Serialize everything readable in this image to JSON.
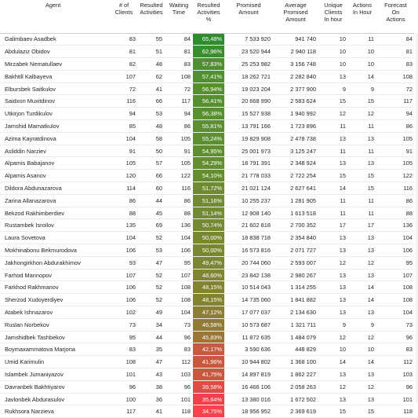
{
  "table": {
    "headers": {
      "agent": "Agent",
      "clients": [
        "# of",
        "Clients"
      ],
      "resulted_activities": [
        "Resulted",
        "Activities"
      ],
      "waiting_time": [
        "Waiting",
        "Time"
      ],
      "resulted_activities_pct": [
        "Resulted",
        "Activities",
        "%"
      ],
      "promised_amount": [
        "Promised",
        "Amount"
      ],
      "avg_promised_amount": [
        "Average",
        "Promised",
        "Amount"
      ],
      "unique_clients_in_hour": [
        "Unique",
        "Clients",
        "In hour"
      ],
      "actions_in_hour": [
        "Actions",
        "In Hour"
      ],
      "forecast_on_actions": [
        "Forecast",
        "On",
        "Actions"
      ]
    },
    "rows": [
      {
        "agent": "Galimbaev Asadbek",
        "clients": "83",
        "resulted": "55",
        "waiting": "84",
        "pct": "65,48%",
        "pct_color": "#2e8b2e",
        "promised": "7 533 920",
        "avg": "941 740",
        "unique": "10",
        "actions": "11",
        "forecast": "84"
      },
      {
        "agent": "Abdulaziz Obidov",
        "clients": "81",
        "resulted": "51",
        "waiting": "81",
        "pct": "62,96%",
        "pct_color": "#3b8e2f",
        "promised": "23 520 944",
        "avg": "2 940 118",
        "unique": "10",
        "actions": "10",
        "forecast": "81"
      },
      {
        "agent": "Mirzabek Nematullaev",
        "clients": "82",
        "resulted": "48",
        "waiting": "83",
        "pct": "57,83%",
        "pct_color": "#4f8f31",
        "promised": "25 253 982",
        "avg": "3 156 748",
        "unique": "10",
        "actions": "10",
        "forecast": "83"
      },
      {
        "agent": "Bakhtill Kalbayeva",
        "clients": "107",
        "resulted": "62",
        "waiting": "108",
        "pct": "57,41%",
        "pct_color": "#518f31",
        "promised": "18 262 721",
        "avg": "2 282 840",
        "unique": "13",
        "actions": "14",
        "forecast": "108"
      },
      {
        "agent": "Elbursbek Saitkulov",
        "clients": "72",
        "resulted": "41",
        "waiting": "72",
        "pct": "56,94%",
        "pct_color": "#548f31",
        "promised": "19 023 204",
        "avg": "2 377 900",
        "unique": "9",
        "actions": "9",
        "forecast": "72"
      },
      {
        "agent": "Saidxon Muxitdinov",
        "clients": "116",
        "resulted": "66",
        "waiting": "117",
        "pct": "56,41%",
        "pct_color": "#568f31",
        "promised": "20 668 990",
        "avg": "2 583 624",
        "unique": "15",
        "actions": "15",
        "forecast": "117"
      },
      {
        "agent": "Utkirjon Turdikulov",
        "clients": "94",
        "resulted": "53",
        "waiting": "94",
        "pct": "56,38%",
        "pct_color": "#578f31",
        "promised": "15 527 938",
        "avg": "1 940 992",
        "unique": "12",
        "actions": "12",
        "forecast": "94"
      },
      {
        "agent": "Jamshid Mamatkulov",
        "clients": "85",
        "resulted": "48",
        "waiting": "86",
        "pct": "55,81%",
        "pct_color": "#5a8e31",
        "promised": "13 791 166",
        "avg": "1 723 896",
        "unique": "11",
        "actions": "11",
        "forecast": "86"
      },
      {
        "agent": "Azima Kayratdinova",
        "clients": "104",
        "resulted": "58",
        "waiting": "105",
        "pct": "55,24%",
        "pct_color": "#5d8e31",
        "promised": "19 829 908",
        "avg": "2 478 738",
        "unique": "13",
        "actions": "13",
        "forecast": "105"
      },
      {
        "agent": "Asliddin Narziev",
        "clients": "91",
        "resulted": "50",
        "waiting": "91",
        "pct": "54,95%",
        "pct_color": "#5f8e31",
        "promised": "25 001 973",
        "avg": "3 125 247",
        "unique": "11",
        "actions": "11",
        "forecast": "91"
      },
      {
        "agent": "Alpamis Babajanov",
        "clients": "105",
        "resulted": "57",
        "waiting": "105",
        "pct": "54,29%",
        "pct_color": "#638d31",
        "promised": "18 791 391",
        "avg": "2 348 924",
        "unique": "13",
        "actions": "13",
        "forecast": "105"
      },
      {
        "agent": "Alpamis Asanov",
        "clients": "120",
        "resulted": "66",
        "waiting": "122",
        "pct": "54,10%",
        "pct_color": "#648d31",
        "promised": "21 778 033",
        "avg": "2 722 254",
        "unique": "15",
        "actions": "15",
        "forecast": "122"
      },
      {
        "agent": "Dildora Abdunazarova",
        "clients": "114",
        "resulted": "60",
        "waiting": "116",
        "pct": "51,72%",
        "pct_color": "#6f8a32",
        "promised": "21 021 124",
        "avg": "2 627 641",
        "unique": "14",
        "actions": "15",
        "forecast": "116"
      },
      {
        "agent": "Zarina Allanazarova",
        "clients": "86",
        "resulted": "44",
        "waiting": "86",
        "pct": "51,16%",
        "pct_color": "#728a32",
        "promised": "10 255 237",
        "avg": "1 281 905",
        "unique": "11",
        "actions": "11",
        "forecast": "86"
      },
      {
        "agent": "Bekzod Rakhimberdiev",
        "clients": "88",
        "resulted": "45",
        "waiting": "88",
        "pct": "51,14%",
        "pct_color": "#728a32",
        "promised": "12 908 140",
        "avg": "1 613 518",
        "unique": "11",
        "actions": "11",
        "forecast": "88"
      },
      {
        "agent": "Rustambek Isroilov",
        "clients": "135",
        "resulted": "69",
        "waiting": "136",
        "pct": "50,74%",
        "pct_color": "#748932",
        "promised": "21 602 818",
        "avg": "2 700 352",
        "unique": "17",
        "actions": "17",
        "forecast": "136"
      },
      {
        "agent": "Laura Sovetova",
        "clients": "104",
        "resulted": "52",
        "waiting": "104",
        "pct": "50,00%",
        "pct_color": "#788832",
        "promised": "18 838 718",
        "avg": "2 354 840",
        "unique": "13",
        "actions": "13",
        "forecast": "104"
      },
      {
        "agent": "Mokhinabonu Bekmurodova",
        "clients": "106",
        "resulted": "53",
        "waiting": "106",
        "pct": "50,00%",
        "pct_color": "#788832",
        "promised": "16 573 816",
        "avg": "2 071 727",
        "unique": "13",
        "actions": "13",
        "forecast": "106"
      },
      {
        "agent": "Jakhongirkhon Abdurakhimov",
        "clients": "93",
        "resulted": "47",
        "waiting": "95",
        "pct": "49,47%",
        "pct_color": "#7b8732",
        "promised": "20 744 060",
        "avg": "2 593 007",
        "unique": "12",
        "actions": "12",
        "forecast": "95"
      },
      {
        "agent": "Farhod Mannopov",
        "clients": "107",
        "resulted": "52",
        "waiting": "107",
        "pct": "48,60%",
        "pct_color": "#808532",
        "promised": "23 842 138",
        "avg": "2 980 267",
        "unique": "13",
        "actions": "13",
        "forecast": "107"
      },
      {
        "agent": "Farkhod Rakhmanov",
        "clients": "106",
        "resulted": "52",
        "waiting": "108",
        "pct": "48,15%",
        "pct_color": "#838432",
        "promised": "10 514 043",
        "avg": "1 314 255",
        "unique": "13",
        "actions": "14",
        "forecast": "108"
      },
      {
        "agent": "Sherzod Xudoyerdiyev",
        "clients": "106",
        "resulted": "52",
        "waiting": "108",
        "pct": "48,15%",
        "pct_color": "#838432",
        "promised": "14 735 060",
        "avg": "1 841 882",
        "unique": "13",
        "actions": "14",
        "forecast": "108"
      },
      {
        "agent": "Atabek Ishnazarov",
        "clients": "102",
        "resulted": "49",
        "waiting": "104",
        "pct": "47,12%",
        "pct_color": "#8a7f33",
        "promised": "17 077 037",
        "avg": "2 134 630",
        "unique": "13",
        "actions": "13",
        "forecast": "104"
      },
      {
        "agent": "Ruslan Norbekov",
        "clients": "73",
        "resulted": "34",
        "waiting": "73",
        "pct": "46,58%",
        "pct_color": "#907c35",
        "promised": "10 573 687",
        "avg": "1 321 711",
        "unique": "9",
        "actions": "9",
        "forecast": "73"
      },
      {
        "agent": "Jamshidbek Tashbekov",
        "clients": "95",
        "resulted": "44",
        "waiting": "96",
        "pct": "45,83%",
        "pct_color": "#9a7638",
        "promised": "11 872 635",
        "avg": "1 484 079",
        "unique": "12",
        "actions": "12",
        "forecast": "96"
      },
      {
        "agent": "Boymaxammatova Marjona",
        "clients": "83",
        "resulted": "35",
        "waiting": "83",
        "pct": "42,17%",
        "pct_color": "#c55b40",
        "promised": "3 590 636",
        "avg": "448 829",
        "unique": "10",
        "actions": "10",
        "forecast": "83"
      },
      {
        "agent": "Umid Karimulin",
        "clients": "108",
        "resulted": "47",
        "waiting": "112",
        "pct": "41,96%",
        "pct_color": "#c85940",
        "promised": "10 944 802",
        "avg": "1 368 100",
        "unique": "14",
        "actions": "14",
        "forecast": "112"
      },
      {
        "agent": "Islambek Jumaniyazov",
        "clients": "101",
        "resulted": "43",
        "waiting": "103",
        "pct": "41,75%",
        "pct_color": "#ca5841",
        "promised": "14 897 819",
        "avg": "1 862 227",
        "unique": "13",
        "actions": "13",
        "forecast": "103"
      },
      {
        "agent": "Davranbek Bakhtiyarov",
        "clients": "96",
        "resulted": "38",
        "waiting": "96",
        "pct": "39,58%",
        "pct_color": "#df4b46",
        "promised": "16 466 106",
        "avg": "2 058 263",
        "unique": "12",
        "actions": "12",
        "forecast": "96"
      },
      {
        "agent": "Javlonbek Abdurasulov",
        "clients": "100",
        "resulted": "36",
        "waiting": "101",
        "pct": "35,64%",
        "pct_color": "#f2404b",
        "promised": "13 380 016",
        "avg": "1 672 502",
        "unique": "13",
        "actions": "13",
        "forecast": "101"
      },
      {
        "agent": "Rukhsora Narzieva",
        "clients": "117",
        "resulted": "41",
        "waiting": "118",
        "pct": "34,75%",
        "pct_color": "#f8434d",
        "promised": "18 956 952",
        "avg": "2 369 619",
        "unique": "15",
        "actions": "15",
        "forecast": "118"
      }
    ]
  }
}
